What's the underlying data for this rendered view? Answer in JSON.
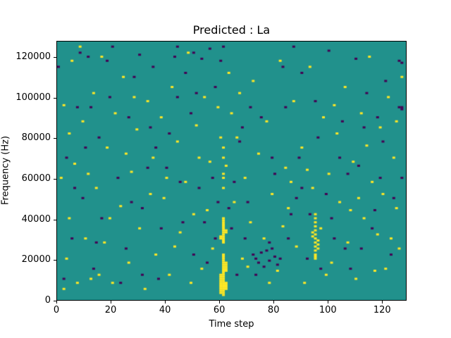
{
  "chart_data": {
    "type": "heatmap",
    "title": "Predicted : La",
    "xlabel": "Time step",
    "ylabel": "Frequency (Hz)",
    "x_ticks": [
      0,
      20,
      40,
      60,
      80,
      100,
      120
    ],
    "y_ticks": [
      0,
      20000,
      40000,
      60000,
      80000,
      100000,
      120000
    ],
    "xlim": [
      0,
      129
    ],
    "ylim": [
      0,
      128000
    ],
    "grid_size": [
      129,
      128
    ],
    "cell_unit_hz": 1000,
    "legend": "none",
    "grid": false,
    "colors": {
      "background": "#21918c",
      "yellow": "#fde725",
      "purple": "#440154"
    },
    "yellow_cells": [
      [
        60,
        3
      ],
      [
        60,
        4
      ],
      [
        60,
        5
      ],
      [
        60,
        6
      ],
      [
        60,
        7
      ],
      [
        60,
        8
      ],
      [
        60,
        9
      ],
      [
        60,
        10
      ],
      [
        60,
        11
      ],
      [
        60,
        12
      ],
      [
        60,
        30
      ],
      [
        60,
        31
      ],
      [
        60,
        80
      ],
      [
        61,
        2
      ],
      [
        61,
        3
      ],
      [
        61,
        4
      ],
      [
        61,
        5
      ],
      [
        61,
        6
      ],
      [
        61,
        7
      ],
      [
        61,
        8
      ],
      [
        61,
        9
      ],
      [
        61,
        10
      ],
      [
        61,
        11
      ],
      [
        61,
        12
      ],
      [
        61,
        13
      ],
      [
        61,
        14
      ],
      [
        61,
        15
      ],
      [
        61,
        16
      ],
      [
        61,
        17
      ],
      [
        61,
        18
      ],
      [
        61,
        19
      ],
      [
        61,
        20
      ],
      [
        61,
        21
      ],
      [
        61,
        22
      ],
      [
        61,
        28
      ],
      [
        61,
        29
      ],
      [
        61,
        30
      ],
      [
        61,
        31
      ],
      [
        61,
        32
      ],
      [
        61,
        33
      ],
      [
        61,
        34
      ],
      [
        61,
        35
      ],
      [
        61,
        36
      ],
      [
        61,
        37
      ],
      [
        61,
        38
      ],
      [
        61,
        39
      ],
      [
        61,
        40
      ],
      [
        61,
        55
      ],
      [
        61,
        60
      ],
      [
        61,
        62
      ],
      [
        61,
        70
      ],
      [
        61,
        75
      ],
      [
        62,
        5
      ],
      [
        62,
        6
      ],
      [
        62,
        7
      ],
      [
        62,
        8
      ],
      [
        62,
        14
      ],
      [
        62,
        15
      ],
      [
        62,
        16
      ],
      [
        62,
        17
      ],
      [
        62,
        18
      ],
      [
        62,
        33
      ],
      [
        62,
        34
      ],
      [
        62,
        66
      ],
      [
        95,
        20
      ],
      [
        95,
        21
      ],
      [
        95,
        22
      ],
      [
        95,
        24
      ],
      [
        95,
        26
      ],
      [
        95,
        28
      ],
      [
        95,
        30
      ],
      [
        95,
        32
      ],
      [
        95,
        34
      ],
      [
        95,
        36
      ],
      [
        95,
        38
      ],
      [
        95,
        40
      ],
      [
        95,
        42
      ],
      [
        96,
        25
      ],
      [
        96,
        27
      ],
      [
        96,
        29
      ],
      [
        94,
        31
      ],
      [
        94,
        33
      ],
      [
        2,
        5
      ],
      [
        3,
        20
      ],
      [
        1,
        60
      ],
      [
        2,
        96
      ],
      [
        5,
        118
      ],
      [
        8,
        125
      ],
      [
        4,
        40
      ],
      [
        6,
        67
      ],
      [
        10,
        30
      ],
      [
        12,
        10
      ],
      [
        9,
        88
      ],
      [
        14,
        55
      ],
      [
        13,
        102
      ],
      [
        16,
        120
      ],
      [
        18,
        75
      ],
      [
        17,
        28
      ],
      [
        20,
        8
      ],
      [
        21,
        92
      ],
      [
        23,
        46
      ],
      [
        24,
        110
      ],
      [
        26,
        18
      ],
      [
        27,
        63
      ],
      [
        29,
        84
      ],
      [
        30,
        35
      ],
      [
        32,
        5
      ],
      [
        33,
        98
      ],
      [
        35,
        70
      ],
      [
        36,
        22
      ],
      [
        38,
        90
      ],
      [
        39,
        50
      ],
      [
        41,
        12
      ],
      [
        42,
        105
      ],
      [
        44,
        78
      ],
      [
        45,
        33
      ],
      [
        47,
        58
      ],
      [
        48,
        122
      ],
      [
        50,
        42
      ],
      [
        51,
        86
      ],
      [
        53,
        15
      ],
      [
        54,
        100
      ],
      [
        56,
        68
      ],
      [
        57,
        25
      ],
      [
        59,
        95
      ],
      [
        63,
        112
      ],
      [
        65,
        48
      ],
      [
        66,
        80
      ],
      [
        68,
        20
      ],
      [
        69,
        60
      ],
      [
        71,
        38
      ],
      [
        72,
        108
      ],
      [
        74,
        72
      ],
      [
        76,
        30
      ],
      [
        77,
        88
      ],
      [
        79,
        52
      ],
      [
        81,
        14
      ],
      [
        82,
        118
      ],
      [
        84,
        65
      ],
      [
        85,
        45
      ],
      [
        87,
        98
      ],
      [
        88,
        26
      ],
      [
        90,
        75
      ],
      [
        91,
        8
      ],
      [
        93,
        115
      ],
      [
        94,
        55
      ],
      [
        97,
        35
      ],
      [
        98,
        90
      ],
      [
        100,
        62
      ],
      [
        101,
        18
      ],
      [
        103,
        82
      ],
      [
        104,
        48
      ],
      [
        106,
        105
      ],
      [
        107,
        28
      ],
      [
        109,
        68
      ],
      [
        110,
        10
      ],
      [
        112,
        92
      ],
      [
        113,
        40
      ],
      [
        115,
        120
      ],
      [
        116,
        58
      ],
      [
        118,
        32
      ],
      [
        119,
        85
      ],
      [
        121,
        15
      ],
      [
        122,
        100
      ],
      [
        124,
        70
      ],
      [
        125,
        45
      ],
      [
        127,
        110
      ],
      [
        126,
        25
      ],
      [
        7,
        8
      ],
      [
        11,
        62
      ],
      [
        19,
        40
      ],
      [
        25,
        72
      ],
      [
        34,
        52
      ],
      [
        43,
        26
      ],
      [
        49,
        8
      ],
      [
        55,
        44
      ],
      [
        64,
        92
      ],
      [
        70,
        16
      ],
      [
        83,
        36
      ],
      [
        92,
        64
      ],
      [
        99,
        12
      ],
      [
        108,
        44
      ],
      [
        114,
        76
      ],
      [
        120,
        52
      ],
      [
        123,
        30
      ],
      [
        4,
        82
      ],
      [
        15,
        12
      ],
      [
        28,
        100
      ],
      [
        40,
        60
      ],
      [
        52,
        70
      ],
      [
        67,
        102
      ],
      [
        78,
        8
      ],
      [
        86,
        58
      ],
      [
        102,
        96
      ],
      [
        111,
        50
      ],
      [
        117,
        14
      ],
      [
        125,
        88
      ]
    ],
    "purple_cells": [
      [
        0,
        115
      ],
      [
        3,
        70
      ],
      [
        5,
        30
      ],
      [
        7,
        95
      ],
      [
        9,
        50
      ],
      [
        11,
        120
      ],
      [
        13,
        15
      ],
      [
        15,
        80
      ],
      [
        16,
        40
      ],
      [
        19,
        100
      ],
      [
        22,
        60
      ],
      [
        25,
        25
      ],
      [
        28,
        110
      ],
      [
        31,
        45
      ],
      [
        34,
        85
      ],
      [
        37,
        10
      ],
      [
        40,
        65
      ],
      [
        43,
        120
      ],
      [
        46,
        38
      ],
      [
        49,
        92
      ],
      [
        52,
        55
      ],
      [
        55,
        18
      ],
      [
        58,
        105
      ],
      [
        61,
        125
      ],
      [
        64,
        35
      ],
      [
        67,
        78
      ],
      [
        70,
        48
      ],
      [
        73,
        12
      ],
      [
        75,
        90
      ],
      [
        78,
        28
      ],
      [
        80,
        62
      ],
      [
        83,
        115
      ],
      [
        86,
        42
      ],
      [
        89,
        70
      ],
      [
        92,
        20
      ],
      [
        95,
        98
      ],
      [
        99,
        52
      ],
      [
        102,
        30
      ],
      [
        105,
        88
      ],
      [
        108,
        15
      ],
      [
        111,
        66
      ],
      [
        114,
        102
      ],
      [
        117,
        44
      ],
      [
        120,
        78
      ],
      [
        123,
        22
      ],
      [
        126,
        95
      ],
      [
        127,
        60
      ],
      [
        2,
        10
      ],
      [
        6,
        55
      ],
      [
        10,
        75
      ],
      [
        14,
        28
      ],
      [
        18,
        118
      ],
      [
        23,
        8
      ],
      [
        27,
        48
      ],
      [
        33,
        65
      ],
      [
        38,
        35
      ],
      [
        44,
        100
      ],
      [
        50,
        22
      ],
      [
        57,
        60
      ],
      [
        63,
        45
      ],
      [
        68,
        85
      ],
      [
        74,
        18
      ],
      [
        79,
        70
      ],
      [
        85,
        30
      ],
      [
        90,
        55
      ],
      [
        96,
        80
      ],
      [
        101,
        40
      ],
      [
        107,
        62
      ],
      [
        112,
        25
      ],
      [
        118,
        90
      ],
      [
        124,
        50
      ],
      [
        72,
        22
      ],
      [
        73,
        20
      ],
      [
        76,
        16
      ],
      [
        77,
        24
      ],
      [
        78,
        19
      ],
      [
        80,
        21
      ],
      [
        81,
        17
      ],
      [
        75,
        23
      ],
      [
        79,
        25
      ],
      [
        82,
        20
      ],
      [
        127,
        95
      ],
      [
        127,
        94
      ],
      [
        126,
        118
      ],
      [
        127,
        117
      ],
      [
        50,
        122
      ],
      [
        53,
        119
      ],
      [
        56,
        124
      ],
      [
        44,
        125
      ],
      [
        30,
        121
      ],
      [
        100,
        123
      ],
      [
        110,
        119
      ],
      [
        87,
        125
      ],
      [
        8,
        122
      ],
      [
        20,
        125
      ],
      [
        35,
        115
      ],
      [
        60,
        118
      ],
      [
        90,
        112
      ],
      [
        12,
        95
      ],
      [
        47,
        112
      ],
      [
        65,
        58
      ],
      [
        69,
        30
      ],
      [
        84,
        95
      ],
      [
        93,
        42
      ],
      [
        104,
        70
      ],
      [
        116,
        35
      ],
      [
        121,
        108
      ],
      [
        26,
        90
      ],
      [
        41,
        82
      ],
      [
        54,
        38
      ],
      [
        59,
        48
      ],
      [
        88,
        50
      ],
      [
        97,
        15
      ],
      [
        106,
        25
      ],
      [
        113,
        85
      ],
      [
        119,
        60
      ],
      [
        31,
        12
      ],
      [
        36,
        75
      ],
      [
        45,
        58
      ],
      [
        51,
        102
      ],
      [
        58,
        30
      ],
      [
        66,
        12
      ],
      [
        71,
        95
      ]
    ]
  }
}
